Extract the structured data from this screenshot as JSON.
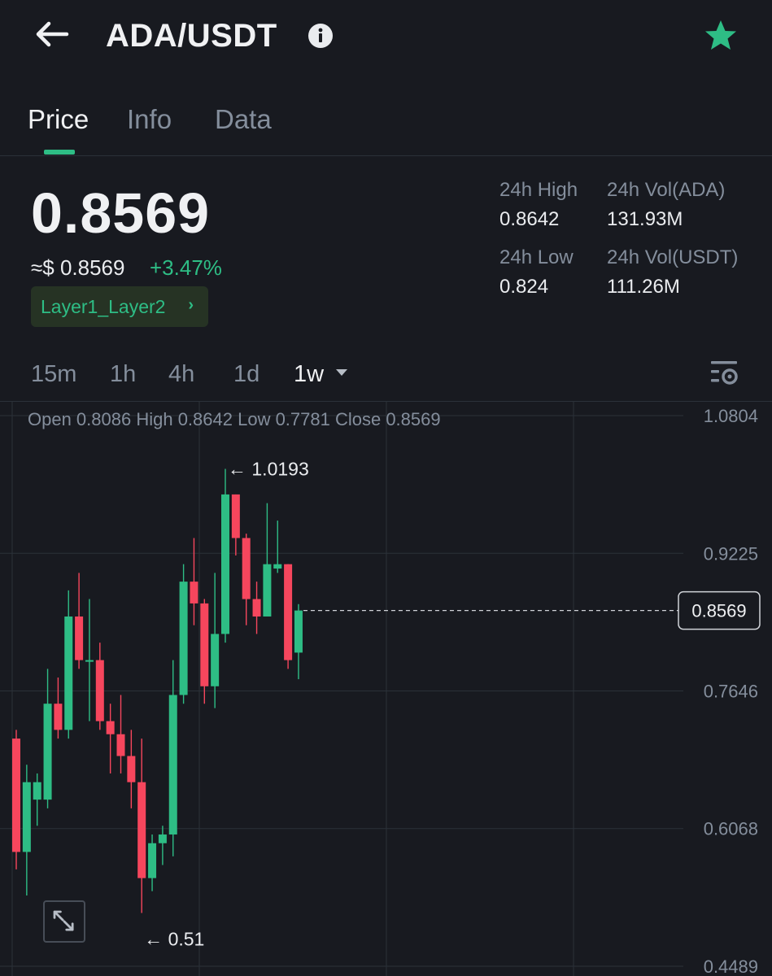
{
  "header": {
    "pair": "ADA/USDT",
    "icons": {
      "back": "back-arrow-icon",
      "info": "info-icon",
      "favorite": "star-icon"
    },
    "favorite_color": "#2ebd85"
  },
  "tabs": [
    {
      "label": "Price",
      "active": true
    },
    {
      "label": "Info",
      "active": false
    },
    {
      "label": "Data",
      "active": false
    }
  ],
  "ticker": {
    "last_price": "0.8569",
    "fiat_price": "≈$ 0.8569",
    "change": "+3.47%",
    "category": "Layer1_Layer2",
    "stats": [
      {
        "label": "24h High",
        "value": "0.8642"
      },
      {
        "label": "24h Vol(ADA)",
        "value": "131.93M"
      },
      {
        "label": "24h Low",
        "value": "0.824"
      },
      {
        "label": "24h Vol(USDT)",
        "value": "111.26M"
      }
    ]
  },
  "intervals": [
    {
      "label": "15m",
      "active": false
    },
    {
      "label": "1h",
      "active": false
    },
    {
      "label": "4h",
      "active": false
    },
    {
      "label": "1d",
      "active": false
    },
    {
      "label": "1w",
      "active": true
    }
  ],
  "colors": {
    "up": "#2ebd85",
    "down": "#f6465d",
    "background": "#181a20",
    "grid": "#2b3139",
    "muted": "#848e9c"
  },
  "chart_data": {
    "type": "candlestick",
    "ohlc_readout": "Open 0.8086 High 0.8642 Low 0.7781 Close 0.8569",
    "y_ticks": [
      "1.0804",
      "0.9225",
      "0.7646",
      "0.6068",
      "0.4489"
    ],
    "ylim": [
      0.4489,
      1.0804
    ],
    "current_price": "0.8569",
    "max_label": "← 1.0193",
    "min_label": "← 0.51",
    "candles": [
      {
        "open": 0.71,
        "high": 0.72,
        "low": 0.56,
        "close": 0.58
      },
      {
        "open": 0.58,
        "high": 0.68,
        "low": 0.53,
        "close": 0.66
      },
      {
        "open": 0.64,
        "high": 0.67,
        "low": 0.61,
        "close": 0.66
      },
      {
        "open": 0.64,
        "high": 0.79,
        "low": 0.63,
        "close": 0.75
      },
      {
        "open": 0.75,
        "high": 0.78,
        "low": 0.71,
        "close": 0.72
      },
      {
        "open": 0.72,
        "high": 0.88,
        "low": 0.71,
        "close": 0.85
      },
      {
        "open": 0.85,
        "high": 0.9,
        "low": 0.79,
        "close": 0.8
      },
      {
        "open": 0.8,
        "high": 0.87,
        "low": 0.73,
        "close": 0.8
      },
      {
        "open": 0.8,
        "high": 0.82,
        "low": 0.72,
        "close": 0.73
      },
      {
        "open": 0.73,
        "high": 0.75,
        "low": 0.67,
        "close": 0.715
      },
      {
        "open": 0.715,
        "high": 0.76,
        "low": 0.67,
        "close": 0.69
      },
      {
        "open": 0.69,
        "high": 0.72,
        "low": 0.63,
        "close": 0.66
      },
      {
        "open": 0.66,
        "high": 0.71,
        "low": 0.51,
        "close": 0.55
      },
      {
        "open": 0.55,
        "high": 0.6,
        "low": 0.535,
        "close": 0.59
      },
      {
        "open": 0.59,
        "high": 0.61,
        "low": 0.565,
        "close": 0.6
      },
      {
        "open": 0.6,
        "high": 0.8,
        "low": 0.575,
        "close": 0.76
      },
      {
        "open": 0.76,
        "high": 0.91,
        "low": 0.75,
        "close": 0.89
      },
      {
        "open": 0.89,
        "high": 0.94,
        "low": 0.84,
        "close": 0.865
      },
      {
        "open": 0.865,
        "high": 0.87,
        "low": 0.75,
        "close": 0.77
      },
      {
        "open": 0.77,
        "high": 0.9,
        "low": 0.745,
        "close": 0.83
      },
      {
        "open": 0.83,
        "high": 1.0193,
        "low": 0.82,
        "close": 0.99
      },
      {
        "open": 0.99,
        "high": 0.99,
        "low": 0.92,
        "close": 0.94
      },
      {
        "open": 0.94,
        "high": 0.945,
        "low": 0.84,
        "close": 0.87
      },
      {
        "open": 0.87,
        "high": 0.89,
        "low": 0.83,
        "close": 0.85
      },
      {
        "open": 0.85,
        "high": 0.98,
        "low": 0.85,
        "close": 0.91
      },
      {
        "open": 0.905,
        "high": 0.96,
        "low": 0.9,
        "close": 0.91
      },
      {
        "open": 0.91,
        "high": 0.91,
        "low": 0.79,
        "close": 0.8
      },
      {
        "open": 0.8086,
        "high": 0.8642,
        "low": 0.7781,
        "close": 0.8569
      }
    ]
  }
}
